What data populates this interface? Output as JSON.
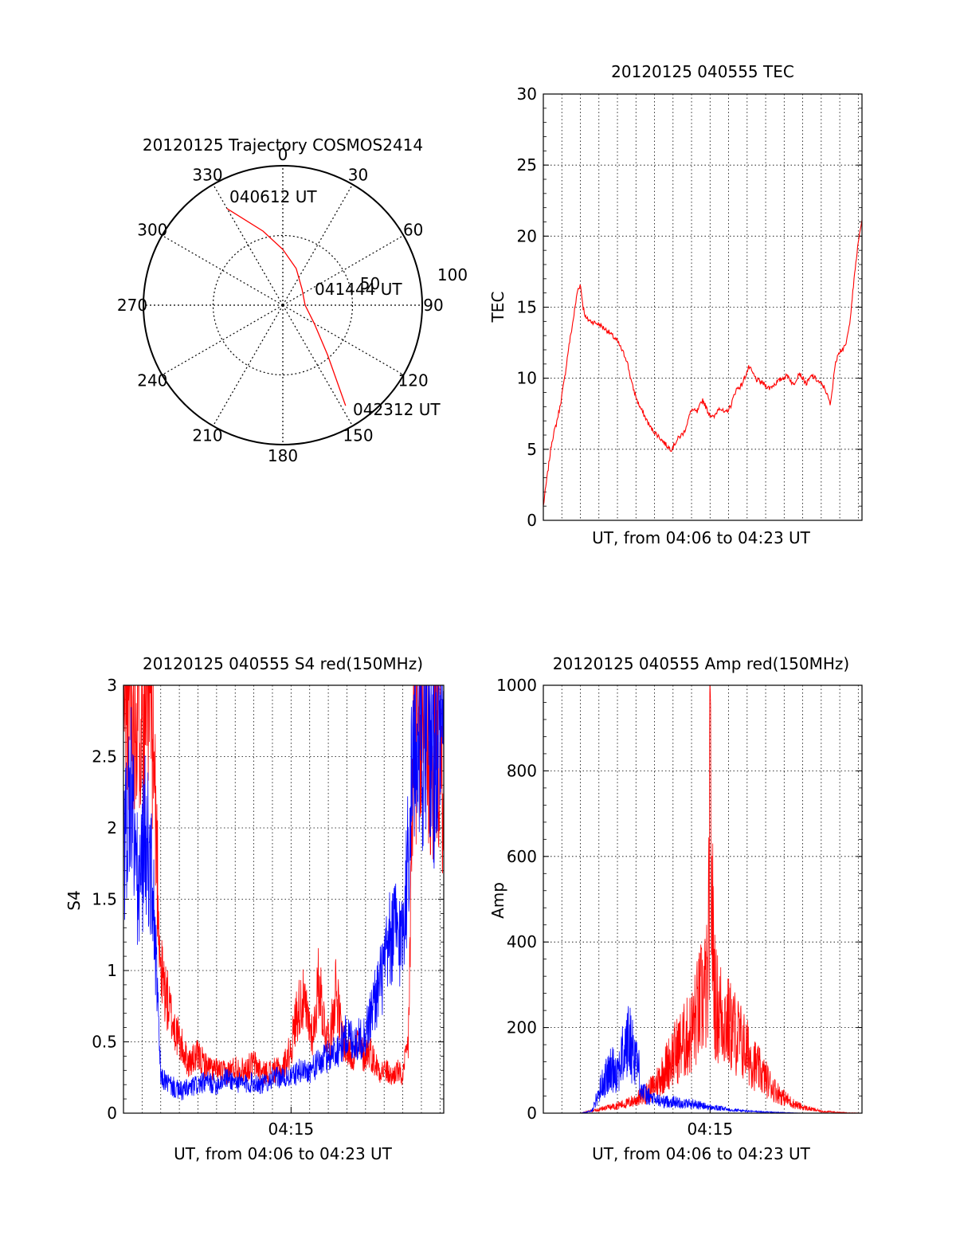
{
  "colors": {
    "red": "#ff0000",
    "blue": "#0000ff",
    "axis": "#000000",
    "grid": "#000000"
  },
  "chart_data": [
    {
      "type": "polar",
      "title": "20120125 Trajectory COSMOS2414",
      "angle_labels": [
        "0",
        "30",
        "60",
        "90",
        "120",
        "150",
        "180",
        "210",
        "240",
        "270",
        "300",
        "330"
      ],
      "radius_labels": [
        "50",
        "100"
      ],
      "radius_max": 100,
      "trajectory": {
        "points": [
          [
            330,
            80
          ],
          [
            345,
            55
          ],
          [
            0,
            40
          ],
          [
            20,
            28
          ],
          [
            50,
            18
          ],
          [
            90,
            16
          ],
          [
            120,
            26
          ],
          [
            138,
            48
          ],
          [
            148,
            85
          ]
        ],
        "color": "red"
      },
      "annotations": [
        "040612 UT",
        "041444 UT",
        "042312 UT"
      ]
    },
    {
      "type": "line",
      "title": "20120125 040555 TEC",
      "xlabel": "UT, from 04:06 to 04:23 UT",
      "ylabel": "TEC",
      "ylim": [
        0,
        30
      ],
      "yticks": [
        "0",
        "5",
        "10",
        "15",
        "20",
        "25",
        "30"
      ],
      "x_range_minutes": [
        6.0,
        23.2
      ],
      "grid": true,
      "series": [
        {
          "color": "red",
          "x": [
            6.0,
            6.2,
            6.45,
            6.7,
            6.9,
            7.15,
            7.35,
            7.6,
            7.85,
            8.0,
            8.15,
            8.3,
            8.6,
            9.0,
            9.5,
            10.0,
            10.5,
            10.8,
            11.1,
            11.4,
            11.8,
            12.3,
            12.7,
            12.9,
            13.3,
            13.6,
            14.0,
            14.3,
            14.6,
            14.9,
            15.2,
            15.5,
            15.8,
            16.1,
            16.4,
            16.7,
            17.1,
            17.5,
            17.9,
            18.2,
            18.5,
            18.9,
            19.2,
            19.5,
            19.8,
            20.2,
            20.5,
            20.9,
            21.2,
            21.5,
            21.7,
            21.9,
            22.1,
            22.3,
            22.5,
            22.7,
            22.9,
            23.05,
            23.2
          ],
          "values": [
            1.0,
            3.0,
            5.5,
            6.8,
            8.0,
            10.0,
            12.0,
            14.0,
            16.2,
            16.6,
            15.0,
            14.2,
            14.0,
            13.8,
            13.3,
            12.6,
            11.3,
            9.5,
            8.3,
            7.5,
            6.5,
            5.8,
            5.2,
            5.0,
            5.8,
            6.2,
            7.8,
            7.6,
            8.5,
            7.6,
            7.2,
            8.0,
            7.5,
            8.0,
            9.2,
            9.5,
            10.8,
            9.9,
            9.6,
            9.3,
            9.6,
            10.0,
            10.2,
            9.5,
            10.4,
            9.6,
            10.2,
            9.7,
            9.3,
            8.1,
            10.5,
            11.8,
            12.0,
            12.2,
            13.5,
            16.0,
            18.5,
            20.0,
            21.2
          ]
        }
      ]
    },
    {
      "type": "line",
      "title": "20120125 040555 S4 red(150MHz)",
      "xlabel": "UT, from 04:06 to 04:23 UT",
      "ylabel": "S4",
      "ylim": [
        0,
        3
      ],
      "yticks": [
        "0",
        "0.5",
        "1",
        "1.5",
        "2",
        "2.5",
        "3"
      ],
      "xticks": [
        {
          "at": 15.0,
          "label": "04:15"
        }
      ],
      "x_range_minutes": [
        6.0,
        23.2
      ],
      "grid": true,
      "series": [
        {
          "color": "red",
          "x": [
            6.0,
            6.4,
            6.8,
            7.2,
            7.5,
            8.0,
            8.5,
            9.0,
            9.5,
            10.0,
            10.5,
            11.0,
            11.5,
            12.0,
            12.5,
            13.0,
            13.5,
            14.0,
            14.5,
            15.0,
            15.3,
            15.6,
            15.9,
            16.2,
            16.5,
            16.8,
            17.1,
            17.4,
            17.7,
            18.0,
            18.3,
            18.6,
            18.9,
            19.2,
            19.5,
            19.8,
            20.1,
            20.4,
            20.7,
            21.0,
            21.3,
            21.6,
            21.9,
            22.2,
            22.5,
            22.8,
            23.2
          ],
          "values": [
            3.0,
            3.0,
            3.0,
            2.9,
            3.0,
            1.0,
            0.7,
            0.5,
            0.35,
            0.4,
            0.32,
            0.3,
            0.28,
            0.32,
            0.3,
            0.35,
            0.28,
            0.3,
            0.3,
            0.45,
            0.7,
            0.8,
            0.65,
            0.55,
            0.95,
            0.6,
            0.5,
            0.9,
            0.55,
            0.45,
            0.4,
            0.5,
            0.4,
            0.45,
            0.35,
            0.3,
            0.3,
            0.25,
            0.3,
            0.25,
            0.5,
            2.8,
            2.5,
            2.9,
            2.2,
            2.8,
            2.0
          ]
        },
        {
          "color": "blue",
          "x": [
            6.0,
            6.4,
            6.8,
            7.2,
            7.6,
            8.0,
            8.5,
            9.0,
            9.5,
            10.0,
            10.5,
            11.0,
            11.5,
            12.0,
            12.5,
            13.0,
            13.5,
            14.0,
            14.5,
            15.0,
            15.5,
            16.0,
            16.5,
            17.0,
            17.5,
            18.0,
            18.5,
            19.0,
            19.5,
            20.0,
            20.3,
            20.6,
            20.9,
            21.2,
            21.5,
            21.8,
            22.1,
            22.4,
            22.7,
            23.0,
            23.2
          ],
          "values": [
            1.8,
            2.3,
            1.5,
            2.0,
            1.5,
            0.25,
            0.2,
            0.15,
            0.17,
            0.2,
            0.22,
            0.2,
            0.25,
            0.22,
            0.2,
            0.22,
            0.2,
            0.25,
            0.25,
            0.25,
            0.3,
            0.3,
            0.35,
            0.4,
            0.45,
            0.55,
            0.5,
            0.55,
            0.8,
            1.0,
            1.2,
            1.3,
            1.2,
            1.6,
            2.4,
            2.7,
            2.6,
            2.8,
            2.4,
            2.7,
            2.5
          ]
        }
      ]
    },
    {
      "type": "line",
      "title": "20120125 040555 Amp red(150MHz)",
      "xlabel": "UT, from 04:06 to 04:23 UT",
      "ylabel": "Amp",
      "ylim": [
        0,
        1000
      ],
      "yticks": [
        "0",
        "200",
        "400",
        "600",
        "800",
        "1000"
      ],
      "xticks": [
        {
          "at": 15.0,
          "label": "04:15"
        }
      ],
      "x_range_minutes": [
        6.0,
        23.2
      ],
      "grid": true,
      "series": [
        {
          "color": "red",
          "x": [
            6.0,
            7.0,
            8.0,
            8.5,
            9.0,
            9.5,
            10.0,
            10.5,
            11.0,
            11.5,
            12.0,
            12.5,
            13.0,
            13.5,
            14.0,
            14.3,
            14.6,
            14.9,
            15.0,
            15.1,
            15.3,
            15.6,
            16.0,
            16.5,
            17.0,
            17.5,
            18.0,
            18.5,
            19.0,
            19.5,
            20.0,
            21.0,
            22.0,
            23.2
          ],
          "values": [
            0,
            0,
            0,
            5,
            10,
            15,
            20,
            25,
            35,
            50,
            70,
            110,
            150,
            180,
            210,
            260,
            300,
            330,
            870,
            520,
            280,
            260,
            230,
            200,
            160,
            120,
            90,
            60,
            40,
            25,
            15,
            5,
            2,
            0
          ]
        },
        {
          "color": "blue",
          "x": [
            6.0,
            7.0,
            8.0,
            8.6,
            8.9,
            9.2,
            9.5,
            9.8,
            10.0,
            10.3,
            10.6,
            10.9,
            11.1,
            11.3,
            11.6,
            12.0,
            12.5,
            13.0,
            13.5,
            14.0,
            14.5,
            15.0,
            16.0,
            17.0,
            18.0,
            20.0,
            23.2
          ],
          "values": [
            0,
            0,
            0,
            5,
            40,
            80,
            100,
            120,
            110,
            150,
            190,
            160,
            130,
            60,
            45,
            35,
            30,
            30,
            25,
            25,
            20,
            15,
            10,
            5,
            3,
            0,
            0
          ]
        }
      ]
    }
  ]
}
